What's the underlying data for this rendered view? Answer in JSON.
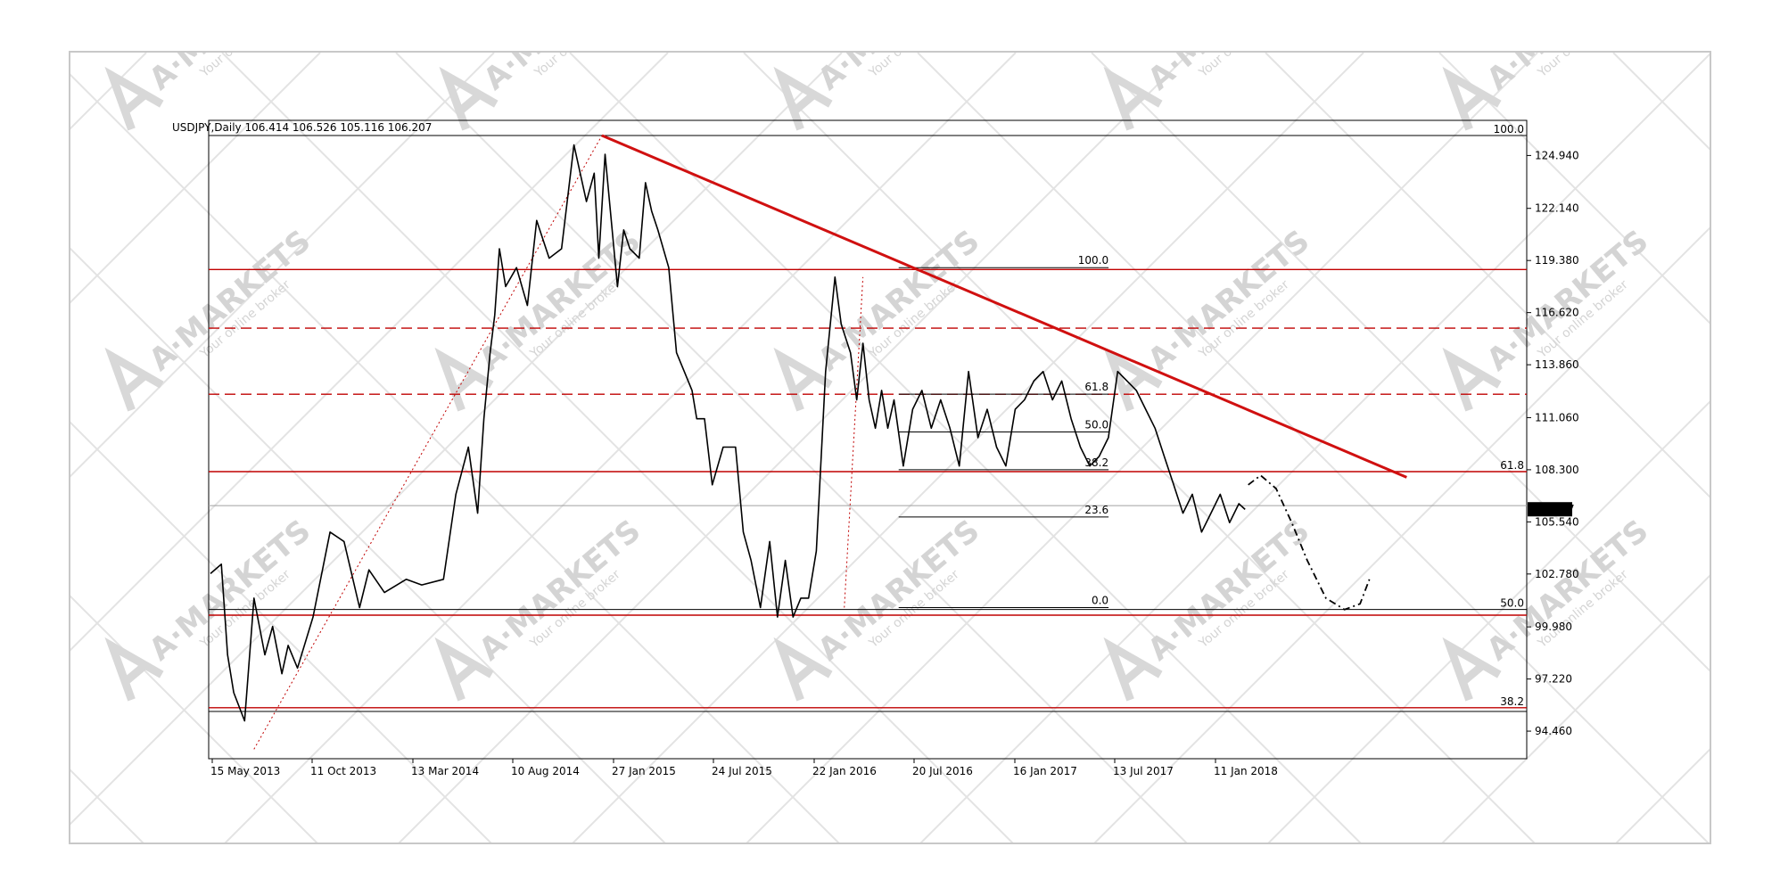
{
  "chart_data": {
    "type": "line",
    "symbol": "USDJPY",
    "timeframe": "Daily",
    "header_text": "USDJPY,Daily  106.414 106.526 105.116 106.207",
    "ohlc": {
      "open": 106.414,
      "high": 106.526,
      "low": 105.116,
      "close": 106.207
    },
    "current_price_label": "106.207",
    "ylim": [
      93.0,
      126.8
    ],
    "y_ticks": [
      "124.940",
      "122.140",
      "119.380",
      "116.620",
      "113.860",
      "111.060",
      "108.300",
      "105.540",
      "102.780",
      "99.980",
      "97.220",
      "94.460"
    ],
    "x_ticks": [
      "15 May 2013",
      "11 Oct 2013",
      "13 Mar 2014",
      "10 Aug 2014",
      "27 Jan 2015",
      "24 Jul 2015",
      "22 Jan 2016",
      "20 Jul 2016",
      "16 Jan 2017",
      "13 Jul 2017",
      "11 Jan 2018"
    ],
    "x_range_months": [
      0,
      69
    ],
    "series": [
      {
        "x": [
          0,
          0.7,
          1.1,
          1.5,
          2.2,
          2.8,
          3.5,
          4.0,
          4.6,
          5.0,
          5.6,
          6.6,
          7.7,
          8.6,
          9.6,
          10.2,
          11.2,
          12.6,
          13.6,
          15.0,
          15.8,
          16.6,
          17.2,
          17.6,
          18.0,
          18.3,
          18.6,
          19.0,
          19.7,
          20.4,
          21.0,
          21.8,
          22.6,
          23.4,
          24.2,
          24.7,
          25.0,
          25.4,
          26.2,
          26.6,
          27.0,
          27.6,
          28.0,
          28.4,
          28.8,
          29.5,
          30.0,
          30.5,
          31.0,
          31.3,
          31.8,
          32.3,
          33.0,
          33.8,
          34.3,
          34.8,
          35.4,
          36.0,
          36.5,
          37.0,
          37.5,
          38.0,
          38.5,
          39.0,
          39.6,
          40.2,
          40.6,
          41.2,
          41.6,
          42.0,
          42.4,
          42.8,
          43.2,
          43.6,
          44.0,
          44.6,
          45.2,
          45.8,
          46.4,
          47.0,
          47.6,
          48.2,
          48.8,
          49.4,
          50.0,
          50.6,
          51.2,
          51.8,
          52.4,
          53.0,
          53.6,
          54.2,
          54.8,
          55.4,
          56.0,
          56.6,
          57.2,
          57.8,
          58.4,
          59.0,
          59.6,
          60.2,
          60.8,
          61.4,
          62.0,
          62.6,
          63.2,
          63.8,
          64.4,
          65.0,
          65.6,
          66.2,
          66.6
        ],
        "values": [
          102.8,
          103.3,
          98.5,
          96.5,
          95.0,
          101.5,
          98.5,
          100.0,
          97.5,
          99.0,
          97.8,
          100.5,
          105.0,
          104.5,
          101.0,
          103.0,
          101.8,
          102.5,
          102.2,
          102.5,
          107.0,
          109.5,
          106.0,
          111.0,
          114.5,
          116.5,
          120.0,
          118.0,
          119.0,
          117.0,
          121.5,
          119.5,
          120.0,
          125.5,
          122.5,
          124.0,
          119.5,
          125.0,
          118.0,
          121.0,
          120.0,
          119.5,
          123.5,
          122.0,
          121.0,
          119.0,
          114.5,
          113.5,
          112.5,
          111.0,
          111.0,
          107.5,
          109.5,
          109.5,
          105.0,
          103.5,
          101.0,
          104.5,
          100.5,
          103.5,
          100.5,
          101.5,
          101.5,
          104.0,
          113.5,
          118.5,
          116.0,
          114.5,
          112.0,
          115.0,
          112.0,
          110.5,
          112.5,
          110.5,
          112.0,
          108.5,
          111.5,
          112.5,
          110.5,
          112.0,
          110.5,
          108.5,
          113.5,
          110.0,
          111.5,
          109.5,
          108.5,
          111.5,
          112.0,
          113.0,
          113.5,
          112.0,
          113.0,
          111.0,
          109.5,
          108.5,
          109.0,
          110.0,
          113.5,
          113.0,
          112.5,
          111.5,
          110.5,
          109.0,
          107.5,
          106.0,
          107.0,
          105.0,
          106.0,
          107.0,
          105.5,
          106.5,
          106.2
        ]
      }
    ],
    "forecast_path": {
      "x": [
        66.8,
        67.6,
        68.6,
        69.6,
        70.6,
        71.8,
        73.0,
        74.0,
        74.6
      ],
      "values": [
        107.5,
        108.0,
        107.3,
        105.5,
        103.5,
        101.5,
        100.9,
        101.2,
        102.5
      ]
    },
    "horizontal_levels": [
      {
        "value": 126.0,
        "color": "#000000",
        "style": "solid",
        "label": "100.0"
      },
      {
        "value": 118.9,
        "color": "#c00000",
        "style": "solid",
        "label": ""
      },
      {
        "value": 115.8,
        "color": "#c00000",
        "style": "dashed",
        "label": ""
      },
      {
        "value": 112.3,
        "color": "#c00000",
        "style": "dashed",
        "label": ""
      },
      {
        "value": 108.2,
        "color": "#c00000",
        "style": "solid",
        "label": "61.8"
      },
      {
        "value": 106.4,
        "color": "#a0a0a0",
        "style": "solid",
        "label": ""
      },
      {
        "value": 100.9,
        "color": "#000000",
        "style": "solid",
        "label": "50.0"
      },
      {
        "value": 100.6,
        "color": "#c00000",
        "style": "solid",
        "label": ""
      },
      {
        "value": 95.7,
        "color": "#c00000",
        "style": "solid",
        "label": "38.2"
      },
      {
        "value": 95.5,
        "color": "#000000",
        "style": "solid",
        "label": ""
      }
    ],
    "trendline": {
      "from": {
        "x": 25.2,
        "value": 126.0
      },
      "to": {
        "x": 77.0,
        "value": 107.9
      },
      "color": "#d01010"
    },
    "fib_retracement_2016": {
      "x_start": 44.3,
      "x_end": 49.2,
      "levels": [
        {
          "value": 119.0,
          "label": "100.0"
        },
        {
          "value": 112.3,
          "label": "61.8"
        },
        {
          "value": 110.3,
          "label": "50.0"
        },
        {
          "value": 108.3,
          "label": "38.2"
        },
        {
          "value": 105.8,
          "label": "23.6"
        },
        {
          "value": 101.0,
          "label": "0.0"
        }
      ]
    },
    "fib_dotted_lines": [
      {
        "from": {
          "x": 2.8,
          "value": 93.5
        },
        "to": {
          "x": 25.2,
          "value": 126.0
        }
      },
      {
        "from": {
          "x": 40.8,
          "value": 101.0
        },
        "to": {
          "x": 42.0,
          "value": 118.5
        }
      }
    ],
    "watermark": {
      "brand": "A·MARKETS",
      "tagline": "Your online broker"
    }
  }
}
